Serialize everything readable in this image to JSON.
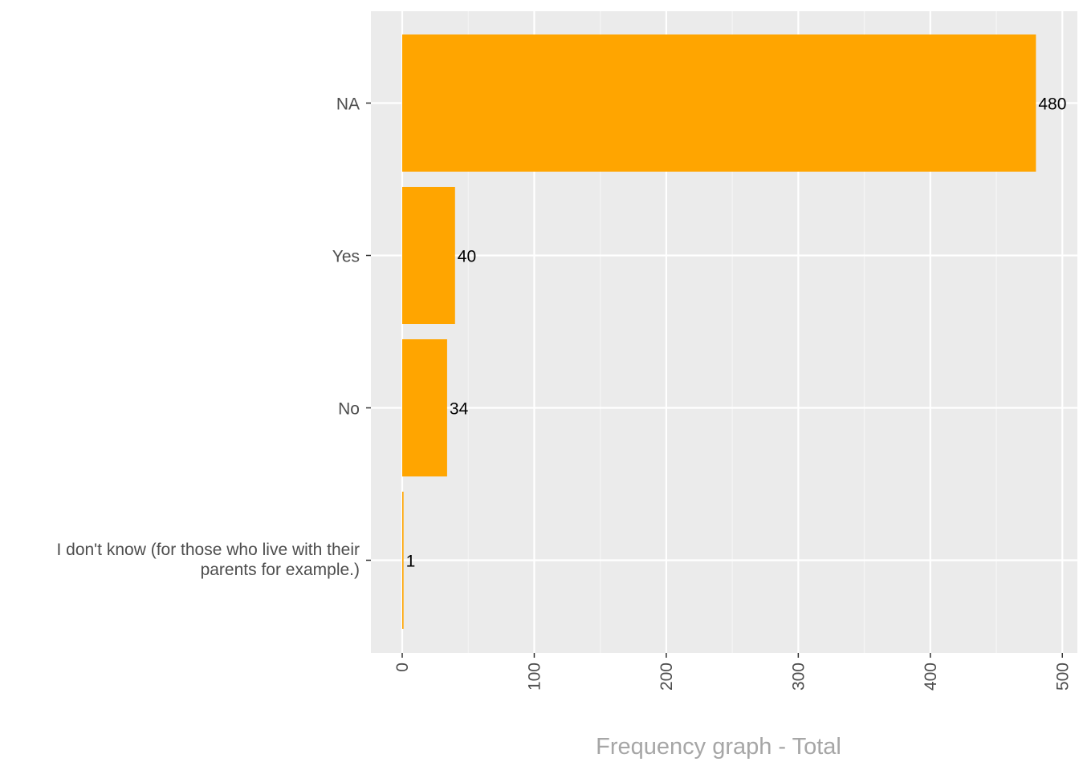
{
  "chart_data": {
    "type": "bar",
    "orientation": "horizontal",
    "categories": [
      "NA",
      "Yes",
      "No",
      "I don't know (for those who live with their parents for example.)"
    ],
    "category_label_lines": [
      [
        "NA"
      ],
      [
        "Yes"
      ],
      [
        "No"
      ],
      [
        "I don't know (for those who live with their",
        "parents for example.)"
      ]
    ],
    "values": [
      480,
      40,
      34,
      1
    ],
    "value_labels": [
      "480",
      "40",
      "34",
      "1"
    ],
    "xlabel": "Frequency graph - Total",
    "ylabel": "",
    "xlim": [
      -23,
      500
    ],
    "x_ticks": [
      0,
      100,
      200,
      300,
      400,
      500
    ],
    "x_tick_labels": [
      "0",
      "100",
      "200",
      "300",
      "400",
      "500"
    ],
    "grid": true,
    "legend": "none",
    "colors": {
      "bar": "#FFA500",
      "panel_background": "#EBEBEB",
      "grid_major": "#FFFFFF",
      "grid_minor": "#F5F5F5"
    }
  }
}
